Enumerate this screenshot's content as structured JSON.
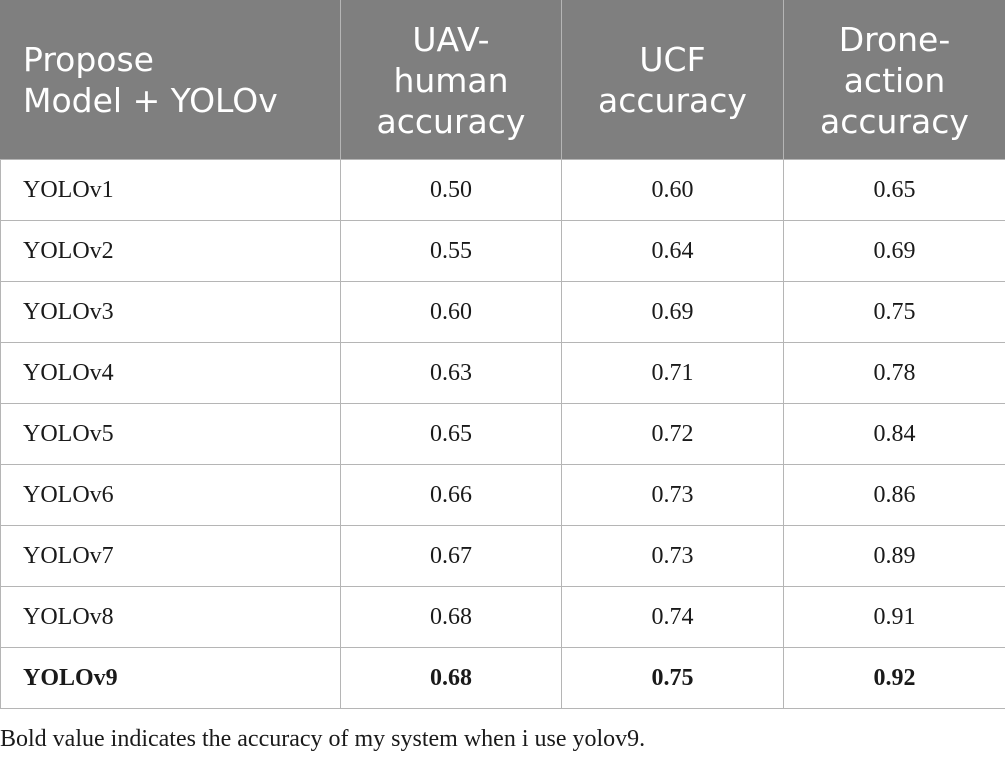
{
  "table": {
    "headers": [
      "Propose Model + YOLOv",
      "UAV-human accuracy",
      "UCF accuracy",
      "Drone-action accuracy"
    ],
    "header_lines": [
      [
        "Propose",
        "Model + YOLOv"
      ],
      [
        "UAV-",
        "human",
        "accuracy"
      ],
      [
        "UCF",
        "accuracy"
      ],
      [
        "Drone-",
        "action",
        "accuracy"
      ]
    ],
    "rows": [
      {
        "model": "YOLOv1",
        "uav_human": "0.50",
        "ucf": "0.60",
        "drone_action": "0.65",
        "bold": false
      },
      {
        "model": "YOLOv2",
        "uav_human": "0.55",
        "ucf": "0.64",
        "drone_action": "0.69",
        "bold": false
      },
      {
        "model": "YOLOv3",
        "uav_human": "0.60",
        "ucf": "0.69",
        "drone_action": "0.75",
        "bold": false
      },
      {
        "model": "YOLOv4",
        "uav_human": "0.63",
        "ucf": "0.71",
        "drone_action": "0.78",
        "bold": false
      },
      {
        "model": "YOLOv5",
        "uav_human": "0.65",
        "ucf": "0.72",
        "drone_action": "0.84",
        "bold": false
      },
      {
        "model": "YOLOv6",
        "uav_human": "0.66",
        "ucf": "0.73",
        "drone_action": "0.86",
        "bold": false
      },
      {
        "model": "YOLOv7",
        "uav_human": "0.67",
        "ucf": "0.73",
        "drone_action": "0.89",
        "bold": false
      },
      {
        "model": "YOLOv8",
        "uav_human": "0.68",
        "ucf": "0.74",
        "drone_action": "0.91",
        "bold": false
      },
      {
        "model": "YOLOv9",
        "uav_human": "0.68",
        "ucf": "0.75",
        "drone_action": "0.92",
        "bold": true
      }
    ]
  },
  "footnote": "Bold value indicates the accuracy of my system when i use yolov9.",
  "colors": {
    "header_bg": "#7f7f7f",
    "header_text": "#ffffff",
    "border": "#b5b5b5",
    "body_text": "#1a1a1a"
  }
}
